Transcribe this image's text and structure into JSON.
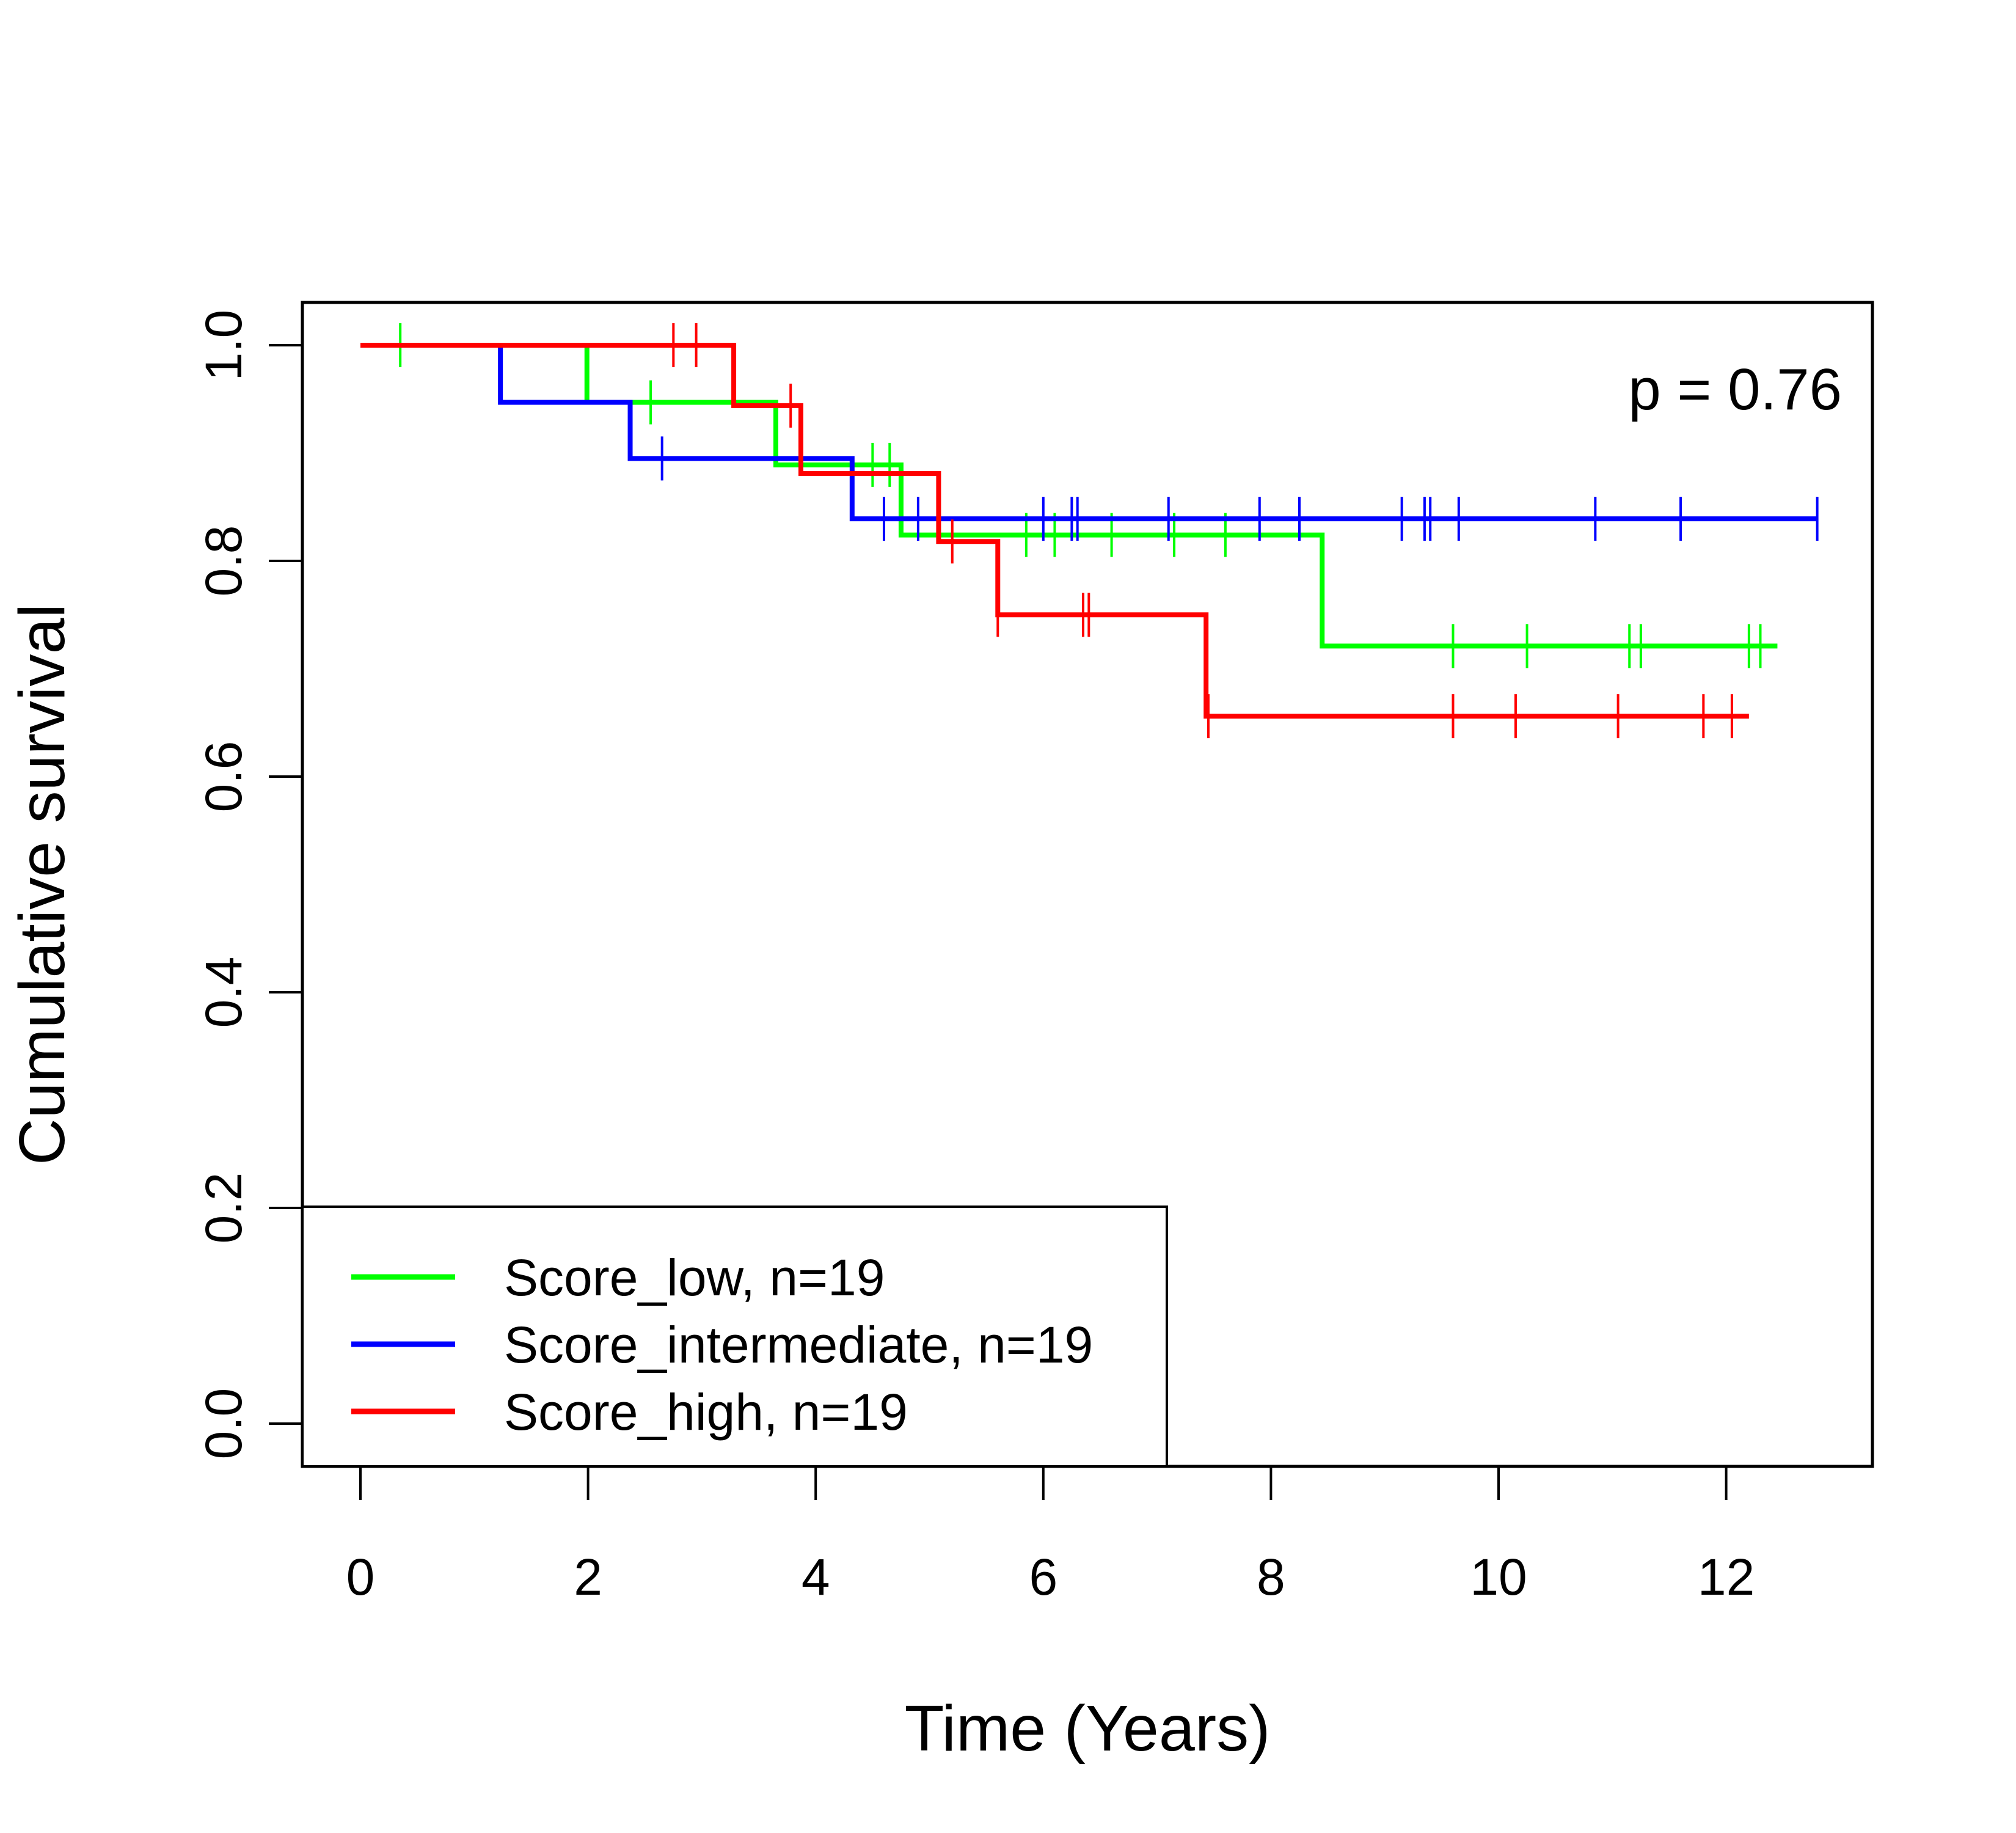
{
  "chart_data": {
    "type": "line",
    "subtype": "kaplan-meier",
    "xlabel": "Time (Years)",
    "ylabel": "Cumulative survival",
    "xlim": [
      0,
      13
    ],
    "ylim": [
      0,
      1
    ],
    "xticks": [
      "0",
      "2",
      "4",
      "6",
      "8",
      "10",
      "12"
    ],
    "yticks": [
      "0.0",
      "0.2",
      "0.4",
      "0.6",
      "0.8",
      "1.0"
    ],
    "annotation": "p = 0.76",
    "legend_position": "bottom-left",
    "series": [
      {
        "name": "Score_low, n=19",
        "color": "#00ff00",
        "steps": [
          [
            0,
            1.0
          ],
          [
            1.99,
            0.947
          ],
          [
            3.65,
            0.889
          ],
          [
            4.75,
            0.824
          ],
          [
            8.45,
            0.721
          ]
        ],
        "end": 12.45,
        "censor_times": [
          0.35,
          2.55,
          4.5,
          4.65,
          5.85,
          6.1,
          6.6,
          7.15,
          7.6,
          9.6,
          10.25,
          11.15,
          11.25,
          12.2,
          12.3
        ]
      },
      {
        "name": "Score_intermediate, n=19",
        "color": "#0000ff",
        "steps": [
          [
            0,
            1.0
          ],
          [
            1.23,
            0.947
          ],
          [
            2.37,
            0.895
          ],
          [
            4.32,
            0.839
          ]
        ],
        "end": 12.8,
        "censor_times": [
          2.65,
          4.6,
          4.9,
          6.0,
          6.25,
          6.3,
          7.1,
          7.9,
          8.25,
          9.15,
          9.35,
          9.4,
          9.65,
          10.85,
          11.6,
          12.8
        ]
      },
      {
        "name": "Score_high, n=19",
        "color": "#ff0000",
        "steps": [
          [
            0,
            1.0
          ],
          [
            3.28,
            0.944
          ],
          [
            3.87,
            0.881
          ],
          [
            5.08,
            0.818
          ],
          [
            5.6,
            0.75
          ],
          [
            7.43,
            0.656
          ]
        ],
        "end": 12.2,
        "censor_times": [
          2.75,
          2.95,
          3.78,
          5.2,
          5.6,
          6.35,
          6.4,
          7.45,
          9.6,
          10.15,
          11.05,
          11.8,
          12.05
        ]
      }
    ]
  }
}
